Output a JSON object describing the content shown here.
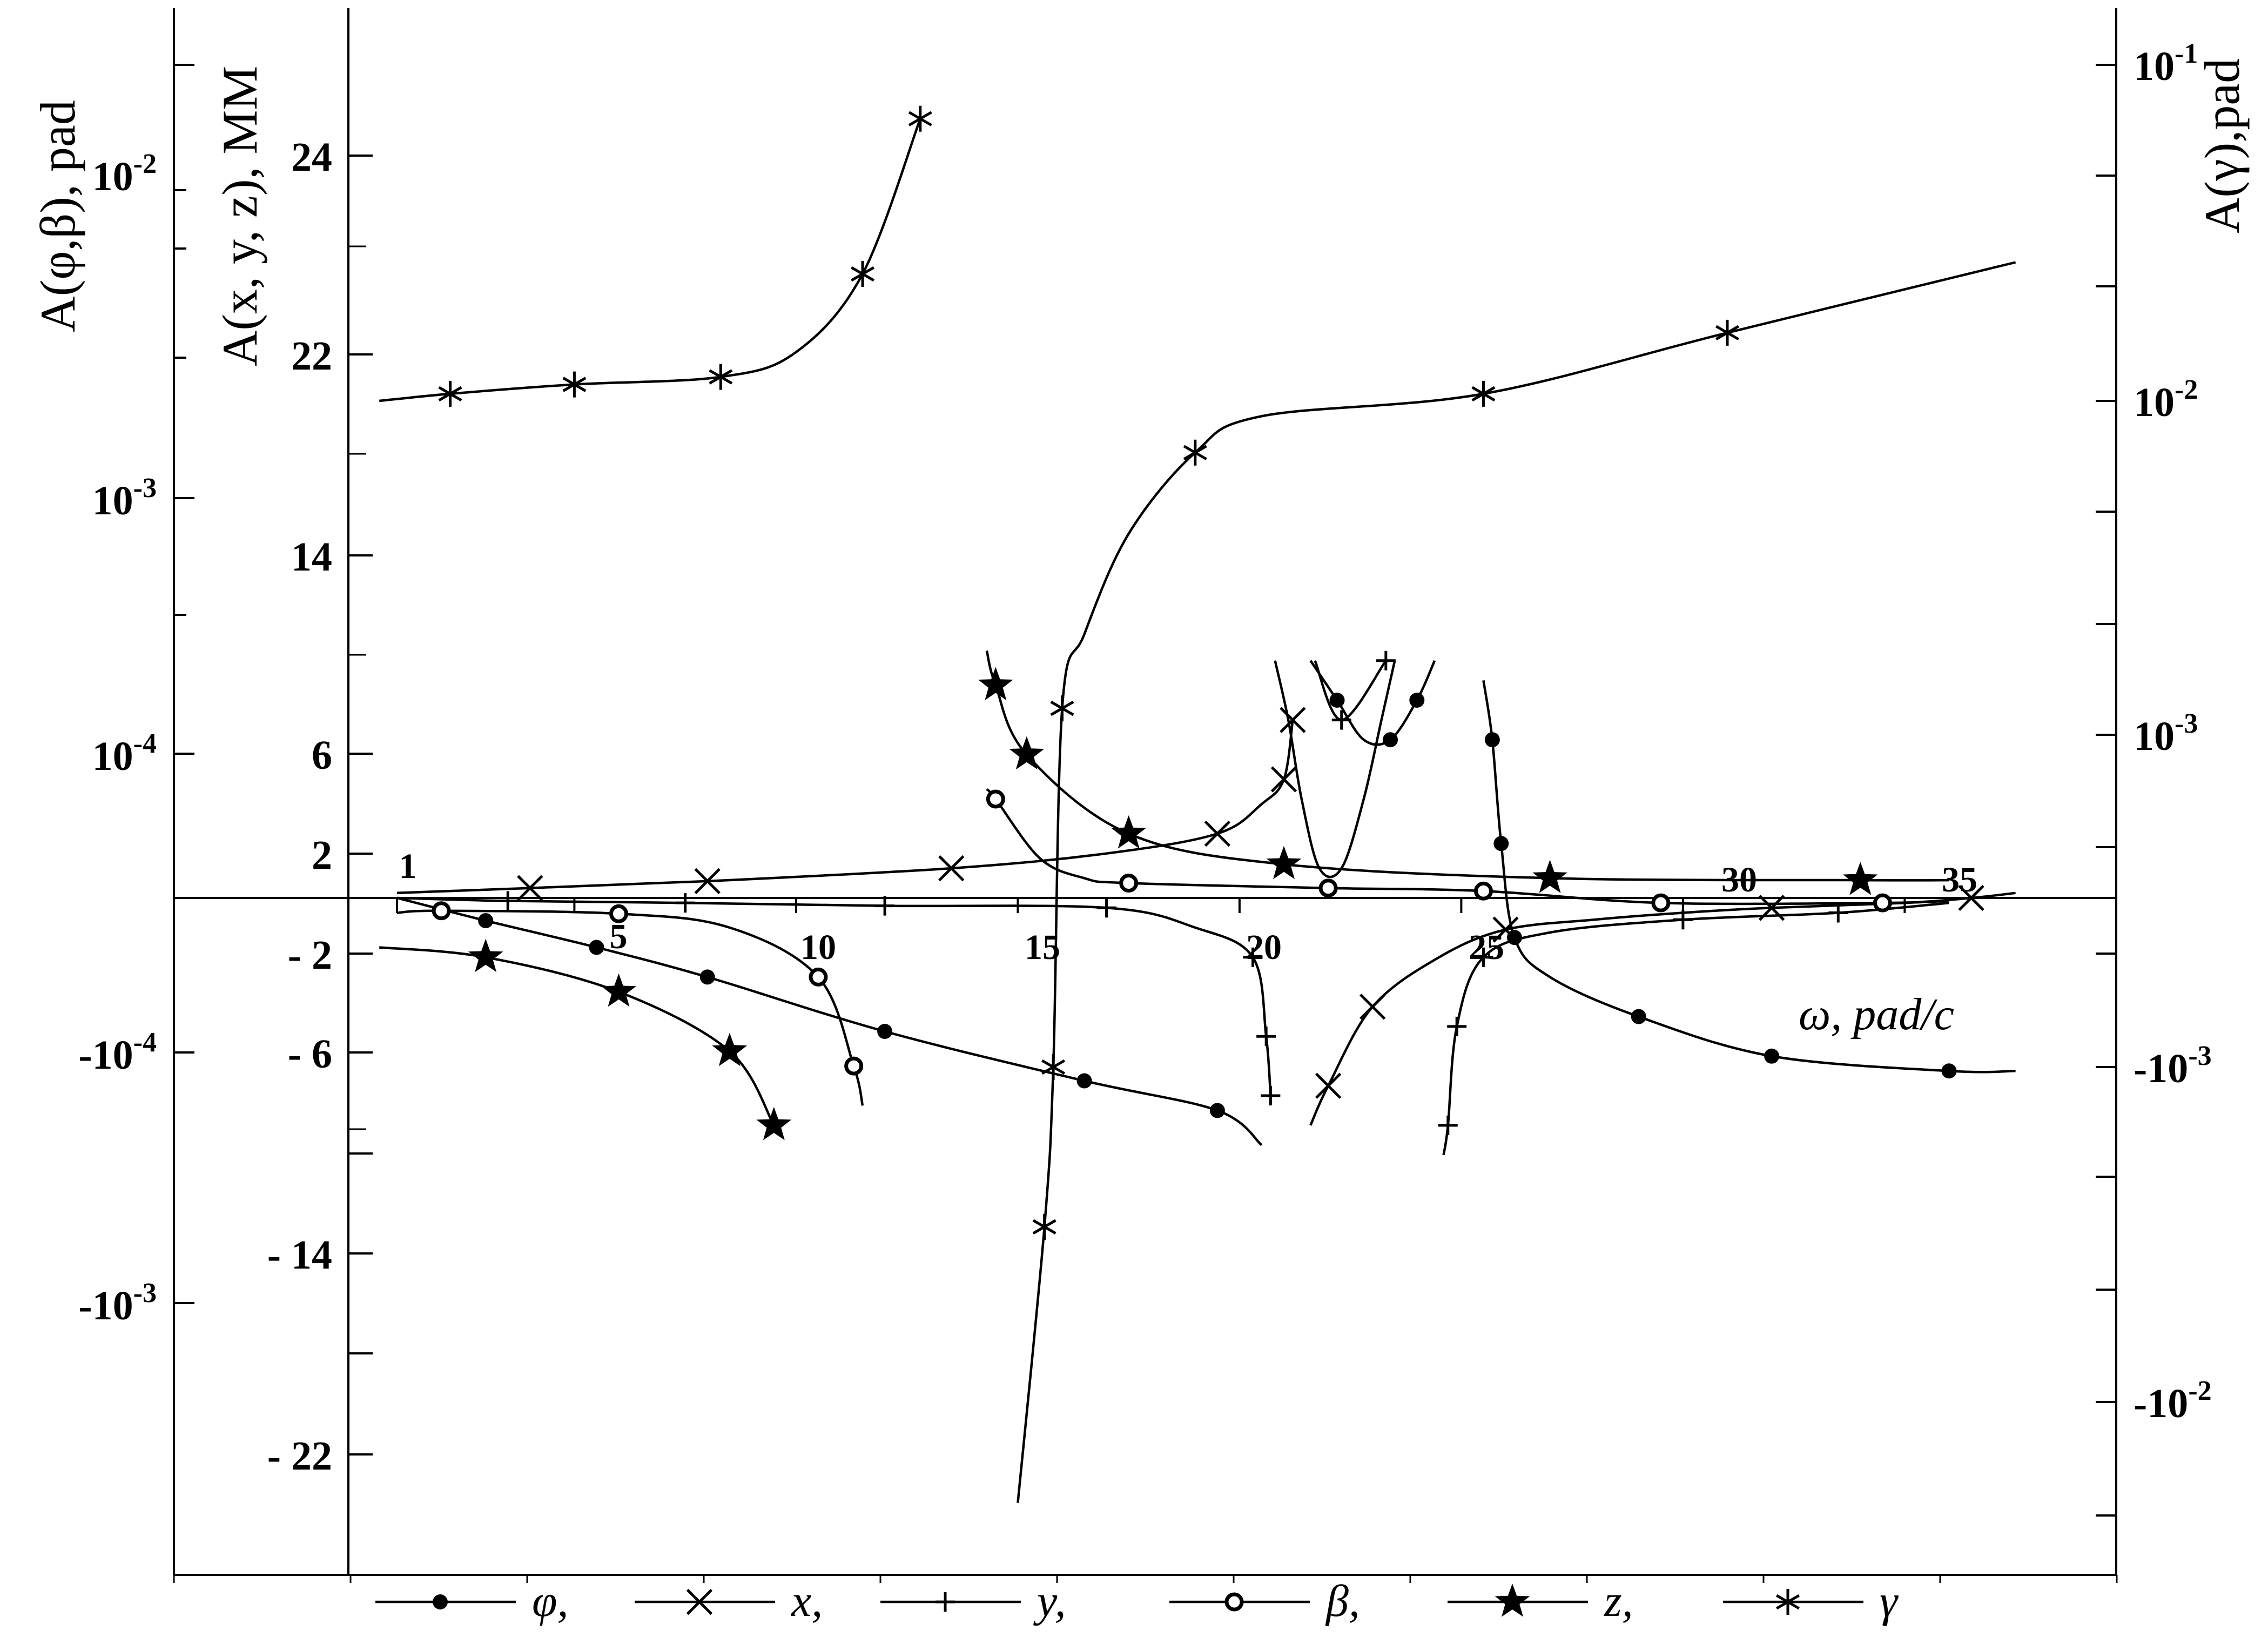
{
  "chart_data": {
    "type": "line",
    "title": "",
    "xlabel": "ω, pad/c",
    "axes": {
      "left_outer_label": "A(φ,β), pad",
      "left_inner_label": "A(x, y, z), MM",
      "right_label": "A(γ),pad"
    },
    "x_ticks": [
      "1",
      "5",
      "10",
      "15",
      "20",
      "25",
      "30",
      "35"
    ],
    "left_outer_ticks": [
      "10-2",
      "10-3",
      "10-4",
      "-10-4",
      "-10-3"
    ],
    "left_inner_ticks": [
      "24",
      "22",
      "14",
      "6",
      "2",
      "- 2",
      "- 6",
      "- 14",
      "- 22"
    ],
    "right_ticks": [
      "10-1",
      "10-2",
      "10-3",
      "-10-3",
      "-10-2"
    ],
    "legend": [
      {
        "key": "phi",
        "label": "φ,",
        "marker": "dot"
      },
      {
        "key": "x",
        "label": "x,",
        "marker": "cross"
      },
      {
        "key": "y",
        "label": "y,",
        "marker": "plus"
      },
      {
        "key": "beta",
        "label": "β,",
        "marker": "circle"
      },
      {
        "key": "z",
        "label": "z,",
        "marker": "star"
      },
      {
        "key": "gamma",
        "label": "γ",
        "marker": "asterisk"
      }
    ],
    "series": [
      {
        "key": "phi",
        "marker": "dot",
        "segments": [
          {
            "x": [
              1,
              3,
              5.5,
              8,
              12,
              16.5,
              19.5,
              20.5
            ],
            "y": [
              0,
              -2.3,
              -5,
              -8,
              -13.5,
              -18.5,
              -21.5,
              -25
            ],
            "marked": [
              false,
              true,
              true,
              true,
              true,
              true,
              true,
              false
            ]
          },
          {
            "x": [
              21.6,
              22.2,
              22.8,
              23.4,
              24,
              24.4
            ],
            "y": [
              24,
              20,
              16,
              16,
              20,
              24
            ],
            "marked": [
              false,
              true,
              false,
              true,
              true,
              false
            ]
          },
          {
            "x": [
              25.5,
              25.7,
              25.9,
              26.2,
              27,
              29,
              32,
              36,
              37.5
            ],
            "y": [
              22,
              16,
              5.5,
              -4,
              -8,
              -12,
              -16,
              -17.5,
              -17.5
            ],
            "marked": [
              false,
              true,
              true,
              true,
              false,
              true,
              true,
              true,
              false
            ]
          }
        ]
      },
      {
        "key": "x",
        "marker": "cross",
        "segments": [
          {
            "x": [
              1,
              4,
              8,
              13.5,
              17,
              19.5,
              20.5,
              21,
              21.2
            ],
            "y": [
              0.5,
              1,
              1.7,
              3,
              4.5,
              6.5,
              9.5,
              12,
              18
            ],
            "marked": [
              false,
              true,
              true,
              true,
              false,
              true,
              false,
              true,
              true
            ]
          },
          {
            "x": [
              21.6,
              22,
              23,
              24.5,
              26,
              28,
              30,
              32,
              35,
              36.5,
              37.5
            ],
            "y": [
              -23,
              -19,
              -11,
              -6,
              -3.2,
              -2.2,
              -1.5,
              -1,
              -0.5,
              0,
              0.5
            ],
            "marked": [
              false,
              true,
              true,
              false,
              true,
              false,
              false,
              true,
              false,
              true,
              false
            ]
          }
        ]
      },
      {
        "key": "y",
        "marker": "plus",
        "segments": [
          {
            "x": [
              1,
              3.5,
              7.5,
              12,
              17,
              19,
              20.3,
              20.6,
              20.7
            ],
            "y": [
              0,
              -0.3,
              -0.5,
              -0.8,
              -1,
              -3,
              -6,
              -14,
              -20
            ],
            "marked": [
              false,
              true,
              true,
              true,
              true,
              false,
              true,
              true,
              true
            ]
          },
          {
            "x": [
              20.8,
              21.1,
              21.4,
              21.8,
              22.3,
              22.8,
              23.2,
              23.5
            ],
            "y": [
              24,
              18,
              10,
              3,
              3,
              10,
              18,
              24
            ],
            "marked": [
              false,
              false,
              false,
              false,
              false,
              false,
              false,
              false
            ]
          },
          {
            "x": [
              21.7,
              22.3,
              23.3
            ],
            "y": [
              24,
              18,
              24
            ],
            "marked": [
              false,
              true,
              true
            ]
          },
          {
            "x": [
              24.6,
              24.7,
              24.9,
              25.5,
              27,
              30,
              33.5,
              36
            ],
            "y": [
              -26,
              -23,
              -13,
              -6,
              -3.5,
              -2.2,
              -1.5,
              -0.5
            ],
            "marked": [
              false,
              true,
              true,
              true,
              false,
              true,
              true,
              false
            ]
          }
        ]
      },
      {
        "key": "beta",
        "marker": "circle",
        "segments": [
          {
            "x": [
              1,
              2,
              6,
              8.5,
              10.5,
              11.3,
              11.5
            ],
            "y": [
              -1.5,
              -1.3,
              -1.6,
              -3,
              -8,
              -17,
              -21
            ],
            "marked": [
              false,
              true,
              true,
              false,
              true,
              true,
              false
            ]
          },
          {
            "x": [
              14.3,
              14.5,
              15.5,
              16.5,
              17.5,
              22,
              25.5,
              29.5,
              34.5,
              36
            ],
            "y": [
              11,
              10,
              4,
              2,
              1.5,
              1,
              0.7,
              -0.5,
              -0.5,
              -0.3
            ],
            "marked": [
              false,
              true,
              false,
              false,
              true,
              true,
              true,
              true,
              true,
              false
            ]
          }
        ]
      },
      {
        "key": "z",
        "marker": "star",
        "segments": [
          {
            "x": [
              0.6,
              3,
              6,
              8.5,
              9.5
            ],
            "y": [
              -5,
              -6,
              -9.5,
              -15.5,
              -23
            ],
            "marked": [
              false,
              true,
              true,
              true,
              true
            ]
          },
          {
            "x": [
              14.3,
              14.5,
              15.2,
              17.5,
              21,
              27,
              34,
              36
            ],
            "y": [
              25,
              21.5,
              14.5,
              6.5,
              3.4,
              2,
              1.8,
              1.8
            ],
            "marked": [
              false,
              true,
              true,
              true,
              true,
              true,
              true,
              false
            ]
          }
        ]
      },
      {
        "key": "gamma",
        "marker": "asterisk",
        "segments": [
          {
            "x": [
              0.6,
              2.2,
              5,
              8.3,
              10,
              11.5,
              12.8
            ],
            "y": [
              0.01,
              0.0105,
              0.0112,
              0.0118,
              0.014,
              0.024,
              0.07
            ],
            "marked": [
              false,
              true,
              true,
              true,
              false,
              true,
              true
            ]
          },
          {
            "x": [
              15,
              15.6,
              15.8,
              16,
              16.5,
              17.5,
              19,
              20.5,
              25.5,
              31,
              37.5
            ],
            "y": [
              -0.02,
              -0.003,
              -0.001,
              0.0012,
              0.002,
              0.004,
              0.007,
              0.009,
              0.0105,
              0.016,
              0.026
            ],
            "marked": [
              false,
              true,
              true,
              true,
              false,
              false,
              true,
              false,
              true,
              true,
              false
            ]
          }
        ]
      }
    ]
  }
}
